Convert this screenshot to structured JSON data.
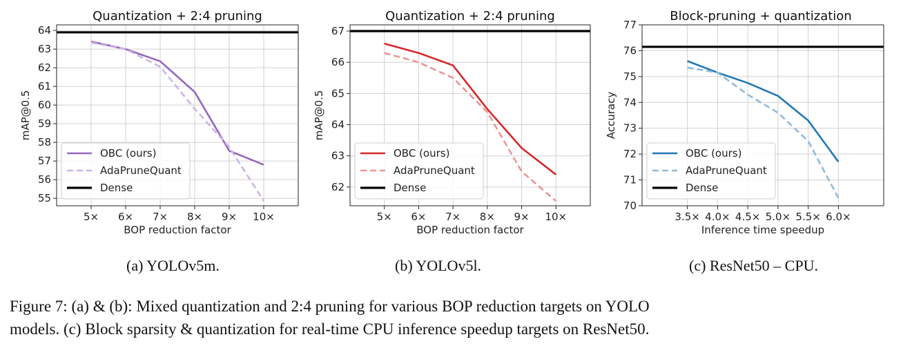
{
  "chart_data": [
    {
      "type": "line",
      "title": "Quantization + 2:4 pruning",
      "xlabel": "BOP reduction factor",
      "ylabel": "mAP@0.5",
      "x": [
        5,
        6,
        7,
        8,
        9,
        10
      ],
      "xticks": [
        5,
        6,
        7,
        8,
        9,
        10
      ],
      "xtick_labels": [
        "5×",
        "6×",
        "7×",
        "8×",
        "9×",
        "10×"
      ],
      "xlim": [
        4.0,
        11.0
      ],
      "yticks": [
        55,
        56,
        57,
        58,
        59,
        60,
        61,
        62,
        63,
        64
      ],
      "ylim": [
        54.6,
        64.3
      ],
      "grid": true,
      "legend_position": "lower-left",
      "series": [
        {
          "name": "OBC (ours)",
          "values": [
            63.4,
            63.0,
            62.35,
            60.7,
            57.55,
            56.8
          ],
          "color": "#9467bd",
          "dashed": false
        },
        {
          "name": "AdaPruneQuant",
          "values": [
            63.35,
            63.0,
            62.05,
            59.8,
            57.75,
            54.85
          ],
          "color": "#cdb3e6",
          "dashed": true
        },
        {
          "name": "Dense",
          "constant": 63.9,
          "color": "#000000",
          "dashed": false
        }
      ]
    },
    {
      "type": "line",
      "title": "Quantization + 2:4 pruning",
      "xlabel": "BOP reduction factor",
      "ylabel": "mAP@0.5",
      "x": [
        5,
        6,
        7,
        8,
        9,
        10
      ],
      "xticks": [
        5,
        6,
        7,
        8,
        9,
        10
      ],
      "xtick_labels": [
        "5×",
        "6×",
        "7×",
        "8×",
        "9×",
        "10×"
      ],
      "xlim": [
        4.0,
        11.0
      ],
      "yticks": [
        62,
        63,
        64,
        65,
        66,
        67
      ],
      "ylim": [
        61.4,
        67.2
      ],
      "grid": true,
      "legend_position": "lower-left",
      "series": [
        {
          "name": "OBC (ours)",
          "values": [
            66.6,
            66.3,
            65.9,
            64.5,
            63.25,
            62.4
          ],
          "color": "#d62728",
          "dashed": false
        },
        {
          "name": "AdaPruneQuant",
          "values": [
            66.3,
            66.0,
            65.5,
            64.4,
            62.5,
            61.55
          ],
          "color": "#ec9494",
          "dashed": true
        },
        {
          "name": "Dense",
          "constant": 67.0,
          "color": "#000000",
          "dashed": false
        }
      ]
    },
    {
      "type": "line",
      "title": "Block-pruning + quantization",
      "xlabel": "Inference time speedup",
      "ylabel": "Accuracy",
      "x": [
        3.5,
        4.0,
        4.5,
        5.0,
        5.5,
        6.0
      ],
      "xticks": [
        3.5,
        4.0,
        4.5,
        5.0,
        5.5,
        6.0
      ],
      "xtick_labels": [
        "3.5×",
        "4.0×",
        "4.5×",
        "5.0×",
        "5.5×",
        "6.0×"
      ],
      "xlim": [
        2.75,
        6.75
      ],
      "yticks": [
        70,
        71,
        72,
        73,
        74,
        75,
        76,
        77
      ],
      "ylim": [
        70.0,
        77.0
      ],
      "grid": true,
      "legend_position": "lower-left",
      "series": [
        {
          "name": "OBC (ours)",
          "values": [
            75.6,
            75.15,
            74.75,
            74.25,
            73.3,
            71.7
          ],
          "color": "#1f77b4",
          "dashed": false
        },
        {
          "name": "AdaPruneQuant",
          "values": [
            75.35,
            75.15,
            74.3,
            73.6,
            72.5,
            70.3
          ],
          "color": "#8fbbd9",
          "dashed": true
        },
        {
          "name": "Dense",
          "constant": 76.15,
          "color": "#000000",
          "dashed": false
        }
      ]
    }
  ],
  "subcaptions": [
    "(a) YOLOv5m.",
    "(b) YOLOv5l.",
    "(c) ResNet50 – CPU."
  ],
  "caption": {
    "line1": "Figure 7: (a) & (b): Mixed quantization and 2:4 pruning for various BOP reduction targets on YOLO",
    "line2": "models. (c) Block sparsity & quantization for real-time CPU inference speedup targets on ResNet50."
  }
}
